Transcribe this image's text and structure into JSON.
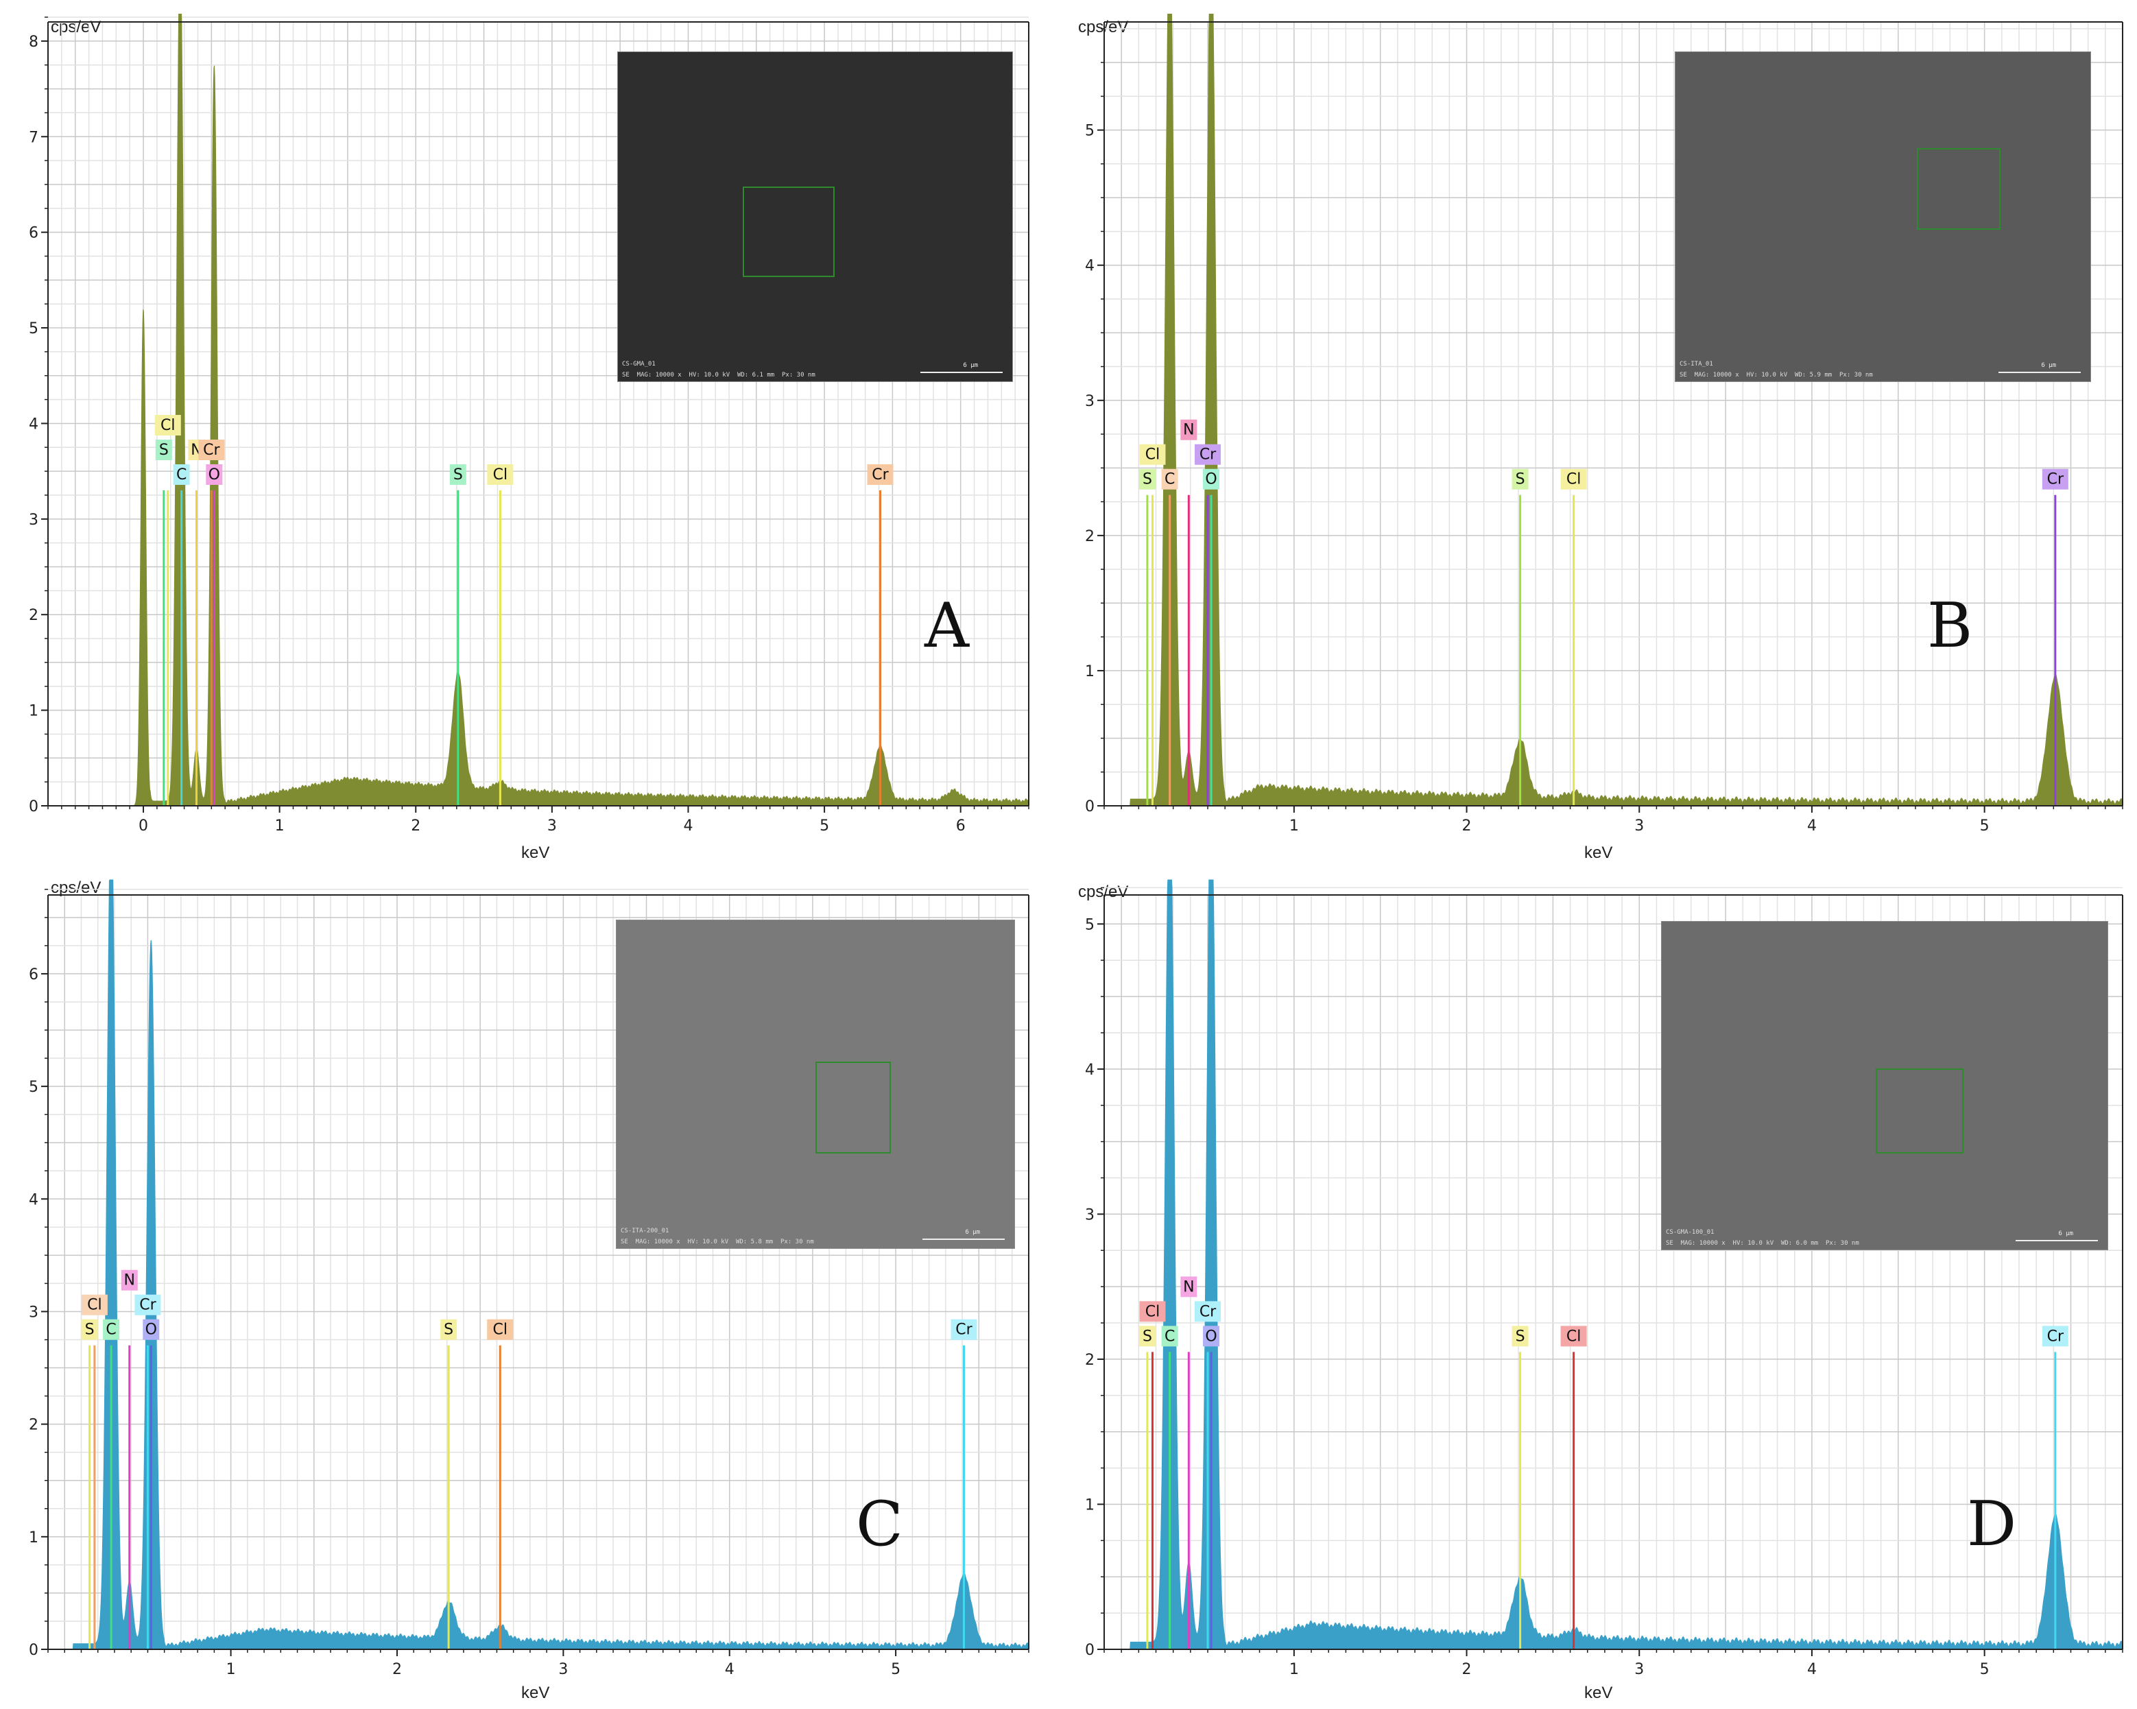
{
  "chart_data": [
    {
      "panel": "A",
      "type": "area",
      "ylabel": "cps/eV",
      "xlabel": "keV",
      "xlim": [
        -0.7,
        6.5
      ],
      "ylim": [
        0,
        8.2
      ],
      "xticks": [
        0,
        1,
        2,
        3,
        4,
        5,
        6
      ],
      "yticks": [
        0,
        1,
        2,
        3,
        4,
        5,
        6,
        7,
        8
      ],
      "color": "#7f8c32",
      "peaks": [
        {
          "x": 0.0,
          "y": 5.2,
          "w": 0.018
        },
        {
          "x": 0.27,
          "y": 9.0,
          "w": 0.025
        },
        {
          "x": 0.39,
          "y": 0.55,
          "w": 0.02
        },
        {
          "x": 0.52,
          "y": 7.7,
          "w": 0.022
        },
        {
          "x": 2.31,
          "y": 1.2,
          "w": 0.04
        },
        {
          "x": 2.62,
          "y": 0.08,
          "w": 0.04
        },
        {
          "x": 5.41,
          "y": 0.55,
          "w": 0.045
        },
        {
          "x": 5.95,
          "y": 0.1,
          "w": 0.05
        }
      ],
      "background": {
        "start": 0.6,
        "level": 0.25,
        "peak_x": 1.5,
        "decay": 0.55,
        "floor": 0.04
      },
      "element_lines": [
        {
          "label": "Cl",
          "x": 0.18,
          "height": 3.3,
          "color": "#e6e64d",
          "label_color": "#f5f0a0",
          "row": 2
        },
        {
          "label": "S",
          "x": 0.15,
          "height": 3.3,
          "color": "#40e080",
          "label_color": "#a6f2c6",
          "row": 1
        },
        {
          "label": "C",
          "x": 0.28,
          "height": 3.3,
          "color": "#40d8e0",
          "label_color": "#b0f0f4",
          "row": 0
        },
        {
          "label": "N",
          "x": 0.39,
          "height": 3.3,
          "color": "#f0d040",
          "label_color": "#f8eaa0",
          "row": 1
        },
        {
          "label": "Cr",
          "x": 0.5,
          "height": 3.3,
          "color": "#e67f30",
          "label_color": "#f8c9a0",
          "row": 1
        },
        {
          "label": "O",
          "x": 0.52,
          "height": 3.3,
          "color": "#e040c0",
          "label_color": "#f3a6e2",
          "row": 0
        },
        {
          "label": "S",
          "x": 2.31,
          "height": 3.3,
          "color": "#40e080",
          "label_color": "#a6f2c6",
          "row": 0
        },
        {
          "label": "Cl",
          "x": 2.62,
          "height": 3.3,
          "color": "#e6e64d",
          "label_color": "#f5f0a0",
          "row": 0
        },
        {
          "label": "Cr",
          "x": 5.41,
          "height": 3.3,
          "color": "#e67f30",
          "label_color": "#f8c9a0",
          "row": 0
        }
      ],
      "inset": {
        "caption_top": "CS-GMA_01",
        "caption": "SE  MAG: 10000 x  HV: 10.0 kV  WD: 6.1 mm  Px: 30 nm",
        "scale": "6 µm"
      }
    },
    {
      "panel": "B",
      "type": "area",
      "ylabel": "cps/eV",
      "xlabel": "keV",
      "xlim": [
        -0.1,
        5.8
      ],
      "ylim": [
        0,
        5.8
      ],
      "xticks": [
        1,
        2,
        3,
        4,
        5
      ],
      "yticks": [
        0,
        1,
        2,
        3,
        4,
        5
      ],
      "color": "#7f8c32",
      "peaks": [
        {
          "x": 0.28,
          "y": 6.5,
          "w": 0.025
        },
        {
          "x": 0.39,
          "y": 0.35,
          "w": 0.02
        },
        {
          "x": 0.52,
          "y": 6.5,
          "w": 0.025
        },
        {
          "x": 2.31,
          "y": 0.42,
          "w": 0.04
        },
        {
          "x": 2.62,
          "y": 0.04,
          "w": 0.04
        },
        {
          "x": 5.41,
          "y": 0.92,
          "w": 0.045
        }
      ],
      "background": {
        "start": 0.6,
        "level": 0.12,
        "peak_x": 0.8,
        "decay": 0.7,
        "floor": 0.03
      },
      "element_lines": [
        {
          "label": "Cl",
          "x": 0.18,
          "height": 2.3,
          "color": "#e6e64d",
          "label_color": "#f5f0a0",
          "row": 1
        },
        {
          "label": "S",
          "x": 0.15,
          "height": 2.3,
          "color": "#a0e040",
          "label_color": "#d4f4a6",
          "row": 0
        },
        {
          "label": "C",
          "x": 0.28,
          "height": 2.3,
          "color": "#f0a060",
          "label_color": "#f8d4b4",
          "row": 0
        },
        {
          "label": "N",
          "x": 0.39,
          "height": 2.3,
          "color": "#e0307a",
          "label_color": "#f39ac0",
          "row": 2
        },
        {
          "label": "Cr",
          "x": 0.5,
          "height": 2.3,
          "color": "#9040e0",
          "label_color": "#c8a0f2",
          "row": 1
        },
        {
          "label": "O",
          "x": 0.52,
          "height": 2.3,
          "color": "#40e0a0",
          "label_color": "#a6f2d4",
          "row": 0
        },
        {
          "label": "S",
          "x": 2.31,
          "height": 2.3,
          "color": "#a0e040",
          "label_color": "#d4f4a6",
          "row": 0
        },
        {
          "label": "Cl",
          "x": 2.62,
          "height": 2.3,
          "color": "#e6e64d",
          "label_color": "#f5f0a0",
          "row": 0
        },
        {
          "label": "Cr",
          "x": 5.41,
          "height": 2.3,
          "color": "#9040e0",
          "label_color": "#c8a0f2",
          "row": 0
        }
      ],
      "inset": {
        "caption_top": "CS-ITA_01",
        "caption": "SE  MAG: 10000 x  HV: 10.0 kV  WD: 5.9 mm  Px: 30 nm",
        "scale": "6 µm"
      }
    },
    {
      "panel": "C",
      "type": "area",
      "ylabel": "cps/eV",
      "xlabel": "keV",
      "xlim": [
        -0.1,
        5.8
      ],
      "ylim": [
        0,
        6.7
      ],
      "xticks": [
        1,
        2,
        3,
        4,
        5
      ],
      "yticks": [
        0,
        1,
        2,
        3,
        4,
        5,
        6
      ],
      "color": "#3aa0c8",
      "peaks": [
        {
          "x": 0.28,
          "y": 7.5,
          "w": 0.025
        },
        {
          "x": 0.39,
          "y": 0.55,
          "w": 0.02
        },
        {
          "x": 0.52,
          "y": 6.25,
          "w": 0.025
        },
        {
          "x": 2.31,
          "y": 0.32,
          "w": 0.04
        },
        {
          "x": 2.62,
          "y": 0.12,
          "w": 0.04
        },
        {
          "x": 5.41,
          "y": 0.62,
          "w": 0.045
        }
      ],
      "background": {
        "start": 0.6,
        "level": 0.15,
        "peak_x": 1.2,
        "decay": 0.65,
        "floor": 0.03
      },
      "element_lines": [
        {
          "label": "Cl",
          "x": 0.18,
          "height": 2.7,
          "color": "#f0a060",
          "label_color": "#f8d4b4",
          "row": 1
        },
        {
          "label": "S",
          "x": 0.15,
          "height": 2.7,
          "color": "#e6e64d",
          "label_color": "#f5f0a0",
          "row": 0
        },
        {
          "label": "C",
          "x": 0.28,
          "height": 2.7,
          "color": "#40e080",
          "label_color": "#a6f2c6",
          "row": 0
        },
        {
          "label": "N",
          "x": 0.39,
          "height": 2.7,
          "color": "#e040c0",
          "label_color": "#f3a6e2",
          "row": 2
        },
        {
          "label": "Cr",
          "x": 0.5,
          "height": 2.7,
          "color": "#40d8f0",
          "label_color": "#b0f0fa",
          "row": 1
        },
        {
          "label": "O",
          "x": 0.52,
          "height": 2.7,
          "color": "#6060e0",
          "label_color": "#b0b0f4",
          "row": 0
        },
        {
          "label": "S",
          "x": 2.31,
          "height": 2.7,
          "color": "#e6e64d",
          "label_color": "#f5f0a0",
          "row": 0
        },
        {
          "label": "Cl",
          "x": 2.62,
          "height": 2.7,
          "color": "#e67f30",
          "label_color": "#f8c9a0",
          "row": 0
        },
        {
          "label": "Cr",
          "x": 5.41,
          "height": 2.7,
          "color": "#40d8f0",
          "label_color": "#b0f0fa",
          "row": 0
        }
      ],
      "inset": {
        "caption_top": "CS-ITA-200_01",
        "caption": "SE  MAG: 10000 x  HV: 10.0 kV  WD: 5.8 mm  Px: 30 nm",
        "scale": "6 µm"
      }
    },
    {
      "panel": "D",
      "type": "area",
      "ylabel": "cps/eV",
      "xlabel": "keV",
      "xlim": [
        -0.1,
        5.8
      ],
      "ylim": [
        0,
        5.2
      ],
      "xticks": [
        1,
        2,
        3,
        4,
        5
      ],
      "yticks": [
        0,
        1,
        2,
        3,
        4,
        5
      ],
      "color": "#3aa0c8",
      "peaks": [
        {
          "x": 0.28,
          "y": 6.0,
          "w": 0.025
        },
        {
          "x": 0.39,
          "y": 0.55,
          "w": 0.02
        },
        {
          "x": 0.52,
          "y": 6.0,
          "w": 0.025
        },
        {
          "x": 2.31,
          "y": 0.4,
          "w": 0.04
        },
        {
          "x": 2.62,
          "y": 0.05,
          "w": 0.04
        },
        {
          "x": 5.41,
          "y": 0.88,
          "w": 0.045
        }
      ],
      "background": {
        "start": 0.6,
        "level": 0.15,
        "peak_x": 1.1,
        "decay": 0.65,
        "floor": 0.03
      },
      "element_lines": [
        {
          "label": "Cl",
          "x": 0.18,
          "height": 2.05,
          "color": "#e03030",
          "label_color": "#f4a6a6",
          "row": 1
        },
        {
          "label": "S",
          "x": 0.15,
          "height": 2.05,
          "color": "#e6e64d",
          "label_color": "#f5f0a0",
          "row": 0
        },
        {
          "label": "C",
          "x": 0.28,
          "height": 2.05,
          "color": "#40e080",
          "label_color": "#a6f2c6",
          "row": 0
        },
        {
          "label": "N",
          "x": 0.39,
          "height": 2.05,
          "color": "#e040c0",
          "label_color": "#f3a6e2",
          "row": 2
        },
        {
          "label": "Cr",
          "x": 0.5,
          "height": 2.05,
          "color": "#40d8f0",
          "label_color": "#b0f0fa",
          "row": 1
        },
        {
          "label": "O",
          "x": 0.52,
          "height": 2.05,
          "color": "#6060e0",
          "label_color": "#b0b0f4",
          "row": 0
        },
        {
          "label": "S",
          "x": 2.31,
          "height": 2.05,
          "color": "#e6e64d",
          "label_color": "#f5f0a0",
          "row": 0
        },
        {
          "label": "Cl",
          "x": 2.62,
          "height": 2.05,
          "color": "#e03030",
          "label_color": "#f4a6a6",
          "row": 0
        },
        {
          "label": "Cr",
          "x": 5.41,
          "height": 2.05,
          "color": "#40d8f0",
          "label_color": "#b0f0fa",
          "row": 0
        }
      ],
      "inset": {
        "caption_top": "CS-GMA-100_01",
        "caption": "SE  MAG: 10000 x  HV: 10.0 kV  WD: 6.0 mm  Px: 30 nm",
        "scale": "6 µm"
      }
    }
  ]
}
